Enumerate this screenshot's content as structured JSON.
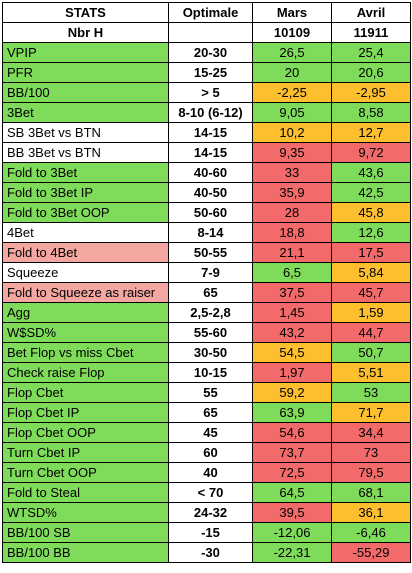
{
  "colors": {
    "green": "#7fdc5a",
    "white": "#ffffff",
    "pink": "#f4a6a0",
    "orange": "#fdbf2d",
    "red": "#f36a6a"
  },
  "header": {
    "stats": "STATS",
    "optimale": "Optimale",
    "mars": "Mars",
    "avril": "Avril",
    "nbr_h_label": "Nbr H",
    "nbr_h_optimale": "",
    "nbr_h_mars": "10109",
    "nbr_h_avril": "11911"
  },
  "rows": [
    {
      "stat": "VPIP",
      "optimale": "20-30",
      "mars": "26,5",
      "avril": "25,4",
      "stat_bg": "green",
      "mars_bg": "green",
      "avril_bg": "green"
    },
    {
      "stat": "PFR",
      "optimale": "15-25",
      "mars": "20",
      "avril": "20,6",
      "stat_bg": "green",
      "mars_bg": "green",
      "avril_bg": "green"
    },
    {
      "stat": "BB/100",
      "optimale": "> 5",
      "mars": "-2,25",
      "avril": "-2,95",
      "stat_bg": "green",
      "mars_bg": "orange",
      "avril_bg": "orange"
    },
    {
      "stat": "3Bet",
      "optimale": "8-10 (6-12)",
      "mars": "9,05",
      "avril": "8,58",
      "stat_bg": "green",
      "mars_bg": "green",
      "avril_bg": "green"
    },
    {
      "stat": "SB 3Bet vs BTN",
      "optimale": "14-15",
      "mars": "10,2",
      "avril": "12,7",
      "stat_bg": "white",
      "mars_bg": "orange",
      "avril_bg": "orange"
    },
    {
      "stat": "BB 3Bet vs BTN",
      "optimale": "14-15",
      "mars": "9,35",
      "avril": "9,72",
      "stat_bg": "white",
      "mars_bg": "red",
      "avril_bg": "red"
    },
    {
      "stat": "Fold to 3Bet",
      "optimale": "40-60",
      "mars": "33",
      "avril": "43,6",
      "stat_bg": "green",
      "mars_bg": "red",
      "avril_bg": "green"
    },
    {
      "stat": "Fold to 3Bet IP",
      "optimale": "40-50",
      "mars": "35,9",
      "avril": "42,5",
      "stat_bg": "green",
      "mars_bg": "red",
      "avril_bg": "green"
    },
    {
      "stat": "Fold to 3Bet OOP",
      "optimale": "50-60",
      "mars": "28",
      "avril": "45,8",
      "stat_bg": "green",
      "mars_bg": "red",
      "avril_bg": "orange"
    },
    {
      "stat": "4Bet",
      "optimale": "8-14",
      "mars": "18,8",
      "avril": "12,6",
      "stat_bg": "white",
      "mars_bg": "red",
      "avril_bg": "green"
    },
    {
      "stat": "Fold to 4Bet",
      "optimale": "50-55",
      "mars": "21,1",
      "avril": "17,5",
      "stat_bg": "pink",
      "mars_bg": "red",
      "avril_bg": "red"
    },
    {
      "stat": "Squeeze",
      "optimale": "7-9",
      "mars": "6,5",
      "avril": "5,84",
      "stat_bg": "white",
      "mars_bg": "green",
      "avril_bg": "orange"
    },
    {
      "stat": "Fold to Squeeze as raiser",
      "optimale": "65",
      "mars": "37,5",
      "avril": "45,7",
      "stat_bg": "pink",
      "mars_bg": "red",
      "avril_bg": "red"
    },
    {
      "stat": "Agg",
      "optimale": "2,5-2,8",
      "mars": "1,45",
      "avril": "1,59",
      "stat_bg": "green",
      "mars_bg": "red",
      "avril_bg": "orange"
    },
    {
      "stat": "W$SD%",
      "optimale": "55-60",
      "mars": "43,2",
      "avril": "44,7",
      "stat_bg": "green",
      "mars_bg": "red",
      "avril_bg": "red"
    },
    {
      "stat": "Bet Flop vs miss Cbet",
      "optimale": "30-50",
      "mars": "54,5",
      "avril": "50,7",
      "stat_bg": "green",
      "mars_bg": "orange",
      "avril_bg": "green"
    },
    {
      "stat": "Check raise Flop",
      "optimale": "10-15",
      "mars": "1,97",
      "avril": "5,51",
      "stat_bg": "green",
      "mars_bg": "red",
      "avril_bg": "orange"
    },
    {
      "stat": "Flop Cbet",
      "optimale": "55",
      "mars": "59,2",
      "avril": "53",
      "stat_bg": "green",
      "mars_bg": "orange",
      "avril_bg": "green"
    },
    {
      "stat": "Flop Cbet IP",
      "optimale": "65",
      "mars": "63,9",
      "avril": "71,7",
      "stat_bg": "green",
      "mars_bg": "green",
      "avril_bg": "orange"
    },
    {
      "stat": "Flop Cbet OOP",
      "optimale": "45",
      "mars": "54,6",
      "avril": "34,4",
      "stat_bg": "green",
      "mars_bg": "red",
      "avril_bg": "red"
    },
    {
      "stat": "Turn Cbet IP",
      "optimale": "60",
      "mars": "73,7",
      "avril": "73",
      "stat_bg": "green",
      "mars_bg": "red",
      "avril_bg": "red"
    },
    {
      "stat": "Turn Cbet OOP",
      "optimale": "40",
      "mars": "72,5",
      "avril": "79,5",
      "stat_bg": "green",
      "mars_bg": "red",
      "avril_bg": "red"
    },
    {
      "stat": "Fold to Steal",
      "optimale": "< 70",
      "mars": "64,5",
      "avril": "68,1",
      "stat_bg": "green",
      "mars_bg": "green",
      "avril_bg": "green"
    },
    {
      "stat": "WTSD%",
      "optimale": "24-32",
      "mars": "39,5",
      "avril": "36,1",
      "stat_bg": "green",
      "mars_bg": "red",
      "avril_bg": "orange"
    },
    {
      "stat": "BB/100 SB",
      "optimale": "-15",
      "mars": "-12,06",
      "avril": "-6,46",
      "stat_bg": "green",
      "mars_bg": "green",
      "avril_bg": "green"
    },
    {
      "stat": "BB/100 BB",
      "optimale": "-30",
      "mars": "-22,31",
      "avril": "-55,29",
      "stat_bg": "green",
      "mars_bg": "green",
      "avril_bg": "red"
    }
  ]
}
